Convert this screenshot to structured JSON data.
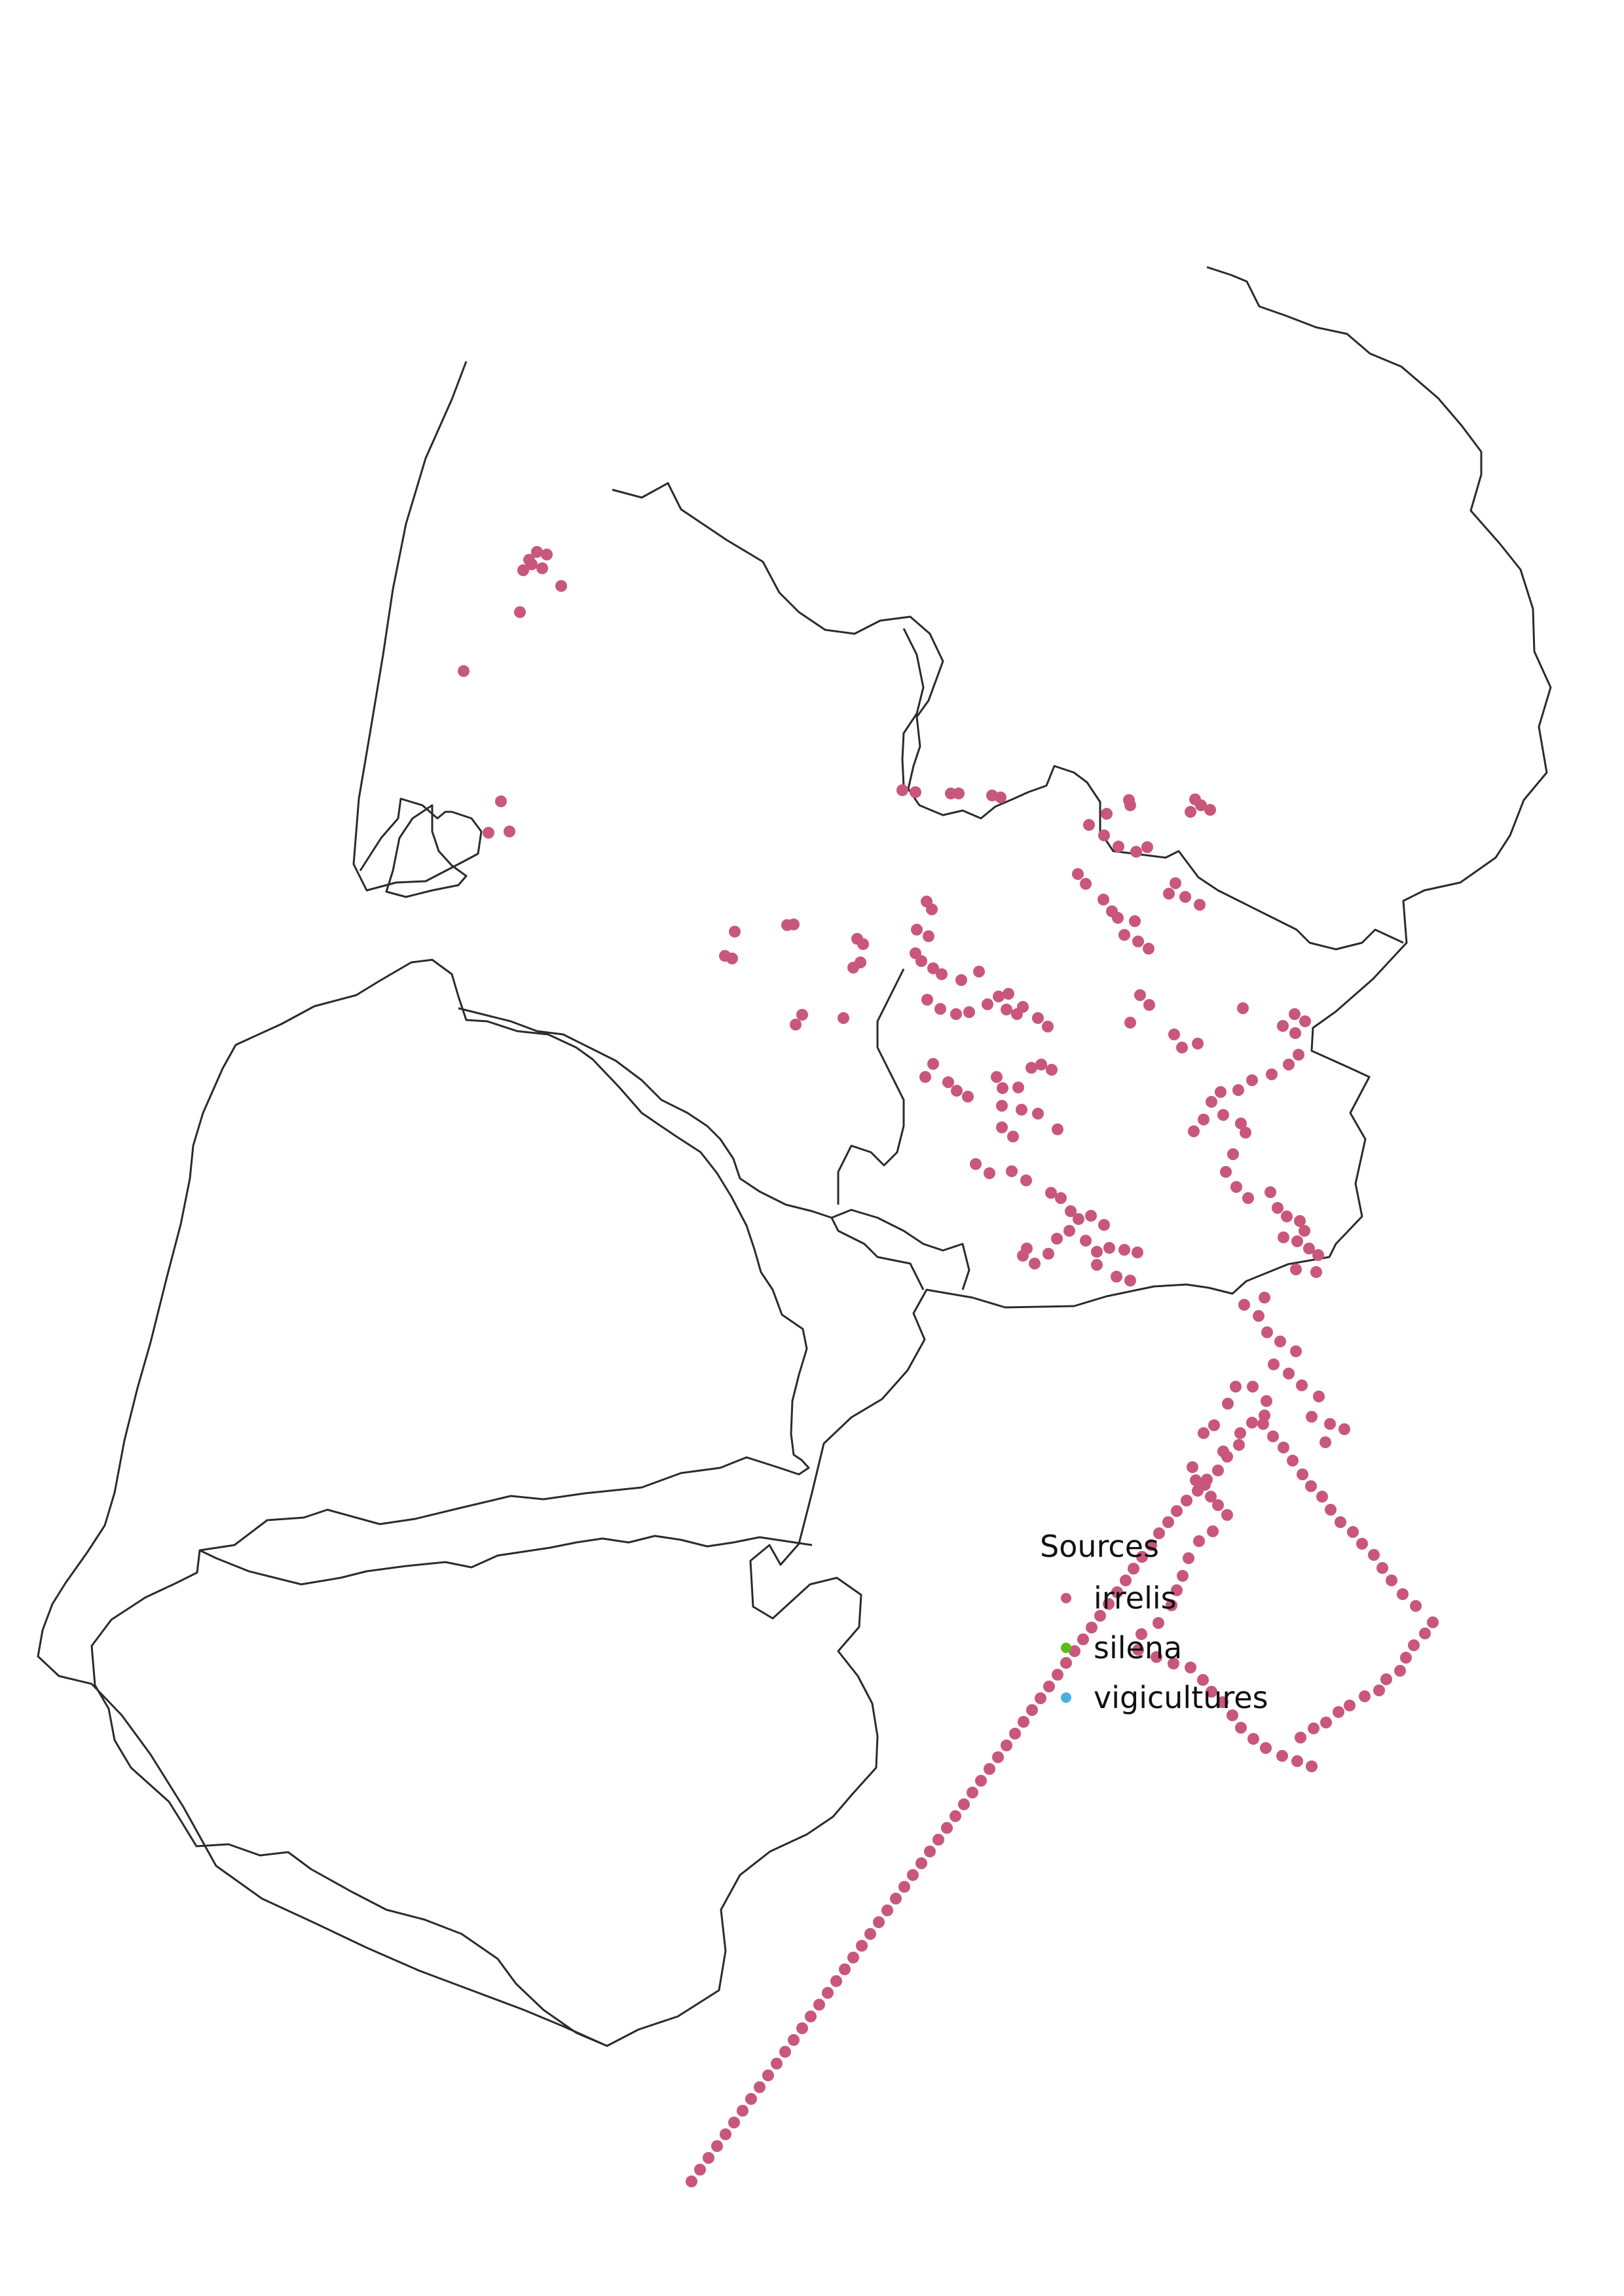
{
  "legend": {
    "title": "Sources",
    "items": [
      {
        "key": "irrelis",
        "label": "irrelis",
        "color": "#c9577a"
      },
      {
        "key": "silena",
        "label": "silena",
        "color": "#5abd1e"
      },
      {
        "key": "vigicultures",
        "label": "vigicultures",
        "color": "#49ade2"
      }
    ]
  },
  "map_data": {
    "type": "point-map",
    "base_layer": "department boundaries",
    "series": [
      {
        "name": "irrelis",
        "color": "#c9577a",
        "points": [
          [
            808,
            855
          ],
          [
            820,
            843
          ],
          [
            835,
            847
          ],
          [
            812,
            862
          ],
          [
            828,
            868
          ],
          [
            799,
            871
          ],
          [
            794,
            935
          ],
          [
            857,
            895
          ],
          [
            708,
            1025
          ],
          [
            765,
            1224
          ],
          [
            746,
            1272
          ],
          [
            778,
            1270
          ],
          [
            1107,
            1460
          ],
          [
            1118,
            1464
          ],
          [
            1122,
            1423
          ],
          [
            1202,
            1413
          ],
          [
            1212,
            1412
          ],
          [
            1225,
            1550
          ],
          [
            1215,
            1565
          ],
          [
            1288,
            1555
          ],
          [
            1378,
            1207
          ],
          [
            1398,
            1210
          ],
          [
            1452,
            1212
          ],
          [
            1464,
            1212
          ],
          [
            1515,
            1215
          ],
          [
            1528,
            1218
          ],
          [
            1423,
            1389
          ],
          [
            1415,
            1377
          ],
          [
            1418,
            1430
          ],
          [
            1400,
            1420
          ],
          [
            1309,
            1434
          ],
          [
            1318,
            1442
          ],
          [
            1314,
            1470
          ],
          [
            1303,
            1478
          ],
          [
            1398,
            1456
          ],
          [
            1407,
            1468
          ],
          [
            1425,
            1479
          ],
          [
            1438,
            1488
          ],
          [
            1468,
            1497
          ],
          [
            1495,
            1484
          ],
          [
            1416,
            1527
          ],
          [
            1436,
            1541
          ],
          [
            1460,
            1549
          ],
          [
            1480,
            1546
          ],
          [
            1508,
            1534
          ],
          [
            1525,
            1522
          ],
          [
            1540,
            1518
          ],
          [
            1537,
            1542
          ],
          [
            1553,
            1549
          ],
          [
            1562,
            1538
          ],
          [
            1585,
            1555
          ],
          [
            1600,
            1568
          ],
          [
            1425,
            1625
          ],
          [
            1413,
            1645
          ],
          [
            1448,
            1653
          ],
          [
            1461,
            1666
          ],
          [
            1478,
            1675
          ],
          [
            1522,
            1645
          ],
          [
            1531,
            1662
          ],
          [
            1555,
            1661
          ],
          [
            1575,
            1631
          ],
          [
            1590,
            1626
          ],
          [
            1606,
            1634
          ],
          [
            1530,
            1689
          ],
          [
            1560,
            1695
          ],
          [
            1585,
            1701
          ],
          [
            1615,
            1725
          ],
          [
            1530,
            1722
          ],
          [
            1547,
            1736
          ],
          [
            1490,
            1778
          ],
          [
            1511,
            1792
          ],
          [
            1545,
            1789
          ],
          [
            1567,
            1803
          ],
          [
            1605,
            1822
          ],
          [
            1620,
            1830
          ],
          [
            1635,
            1850
          ],
          [
            1666,
            1857
          ],
          [
            1686,
            1871
          ],
          [
            1647,
            1862
          ],
          [
            1658,
            1895
          ],
          [
            1675,
            1912
          ],
          [
            1694,
            1906
          ],
          [
            1717,
            1909
          ],
          [
            1737,
            1913
          ],
          [
            1705,
            1950
          ],
          [
            1726,
            1956
          ],
          [
            1614,
            1892
          ],
          [
            1633,
            1880
          ],
          [
            1675,
            1932
          ],
          [
            1568,
            1907
          ],
          [
            1562,
            1918
          ],
          [
            1580,
            1930
          ],
          [
            1601,
            1915
          ],
          [
            1724,
            1222
          ],
          [
            1726,
            1230
          ],
          [
            1690,
            1243
          ],
          [
            1663,
            1260
          ],
          [
            1686,
            1276
          ],
          [
            1708,
            1293
          ],
          [
            1735,
            1301
          ],
          [
            1752,
            1294
          ],
          [
            1646,
            1335
          ],
          [
            1658,
            1350
          ],
          [
            1685,
            1374
          ],
          [
            1698,
            1392
          ],
          [
            1707,
            1402
          ],
          [
            1733,
            1407
          ],
          [
            1717,
            1428
          ],
          [
            1738,
            1438
          ],
          [
            1754,
            1449
          ],
          [
            1825,
            1221
          ],
          [
            1834,
            1230
          ],
          [
            1818,
            1240
          ],
          [
            1848,
            1237
          ],
          [
            1795,
            1349
          ],
          [
            1785,
            1365
          ],
          [
            1810,
            1370
          ],
          [
            1832,
            1382
          ],
          [
            1741,
            1520
          ],
          [
            1755,
            1535
          ],
          [
            1726,
            1562
          ],
          [
            1793,
            1580
          ],
          [
            1805,
            1600
          ],
          [
            1829,
            1594
          ],
          [
            1898,
            1540
          ],
          [
            1959,
            1567
          ],
          [
            1977,
            1549
          ],
          [
            1993,
            1560
          ],
          [
            1978,
            1578
          ],
          [
            1983,
            1611
          ],
          [
            1968,
            1626
          ],
          [
            1942,
            1641
          ],
          [
            1912,
            1650
          ],
          [
            1891,
            1665
          ],
          [
            1864,
            1668
          ],
          [
            1850,
            1683
          ],
          [
            1838,
            1710
          ],
          [
            1823,
            1728
          ],
          [
            1868,
            1703
          ],
          [
            1895,
            1716
          ],
          [
            1902,
            1730
          ],
          [
            1883,
            1763
          ],
          [
            1872,
            1790
          ],
          [
            1888,
            1813
          ],
          [
            1906,
            1830
          ],
          [
            1940,
            1821
          ],
          [
            1951,
            1845
          ],
          [
            1965,
            1858
          ],
          [
            1985,
            1865
          ],
          [
            1992,
            1880
          ],
          [
            1960,
            1890
          ],
          [
            1981,
            1896
          ],
          [
            1999,
            1907
          ],
          [
            2013,
            1917
          ],
          [
            1979,
            1939
          ],
          [
            2010,
            1943
          ],
          [
            1931,
            1982
          ],
          [
            1900,
            1993
          ],
          [
            1922,
            2010
          ],
          [
            1935,
            2035
          ],
          [
            1955,
            2049
          ],
          [
            1979,
            2064
          ],
          [
            1945,
            2084
          ],
          [
            1968,
            2098
          ],
          [
            1988,
            2116
          ],
          [
            2014,
            2133
          ],
          [
            2003,
            2164
          ],
          [
            2031,
            2175
          ],
          [
            2053,
            2183
          ],
          [
            2024,
            2203
          ],
          [
            1913,
            2118
          ],
          [
            1934,
            2140
          ],
          [
            1931,
            2162
          ],
          [
            1838,
            2189
          ],
          [
            1854,
            2177
          ],
          [
            1875,
            2144
          ],
          [
            1887,
            2118
          ],
          [
            1912,
            2173
          ],
          [
            1894,
            2189
          ],
          [
            1868,
            2217
          ],
          [
            1821,
            2241
          ],
          [
            1826,
            2261
          ],
          [
            1840,
            2268
          ],
          [
            1849,
            2286
          ],
          [
            1860,
            2299
          ],
          [
            1874,
            2314
          ],
          [
            1852,
            2339
          ],
          [
            1831,
            2354
          ],
          [
            1815,
            2380
          ],
          [
            1806,
            2407
          ],
          [
            1797,
            2429
          ],
          [
            1789,
            2452
          ],
          [
            1769,
            2479
          ],
          [
            1743,
            2496
          ],
          [
            1738,
            2520
          ],
          [
            1766,
            2531
          ],
          [
            1792,
            2541
          ],
          [
            1818,
            2547
          ],
          [
            1837,
            2566
          ],
          [
            1850,
            2584
          ],
          [
            1867,
            2600
          ],
          [
            1882,
            2620
          ],
          [
            1895,
            2639
          ],
          [
            1914,
            2656
          ],
          [
            1933,
            2670
          ],
          [
            1958,
            2682
          ],
          [
            1981,
            2690
          ],
          [
            2003,
            2698
          ],
          [
            1986,
            2654
          ],
          [
            2006,
            2640
          ],
          [
            2025,
            2631
          ],
          [
            2044,
            2615
          ],
          [
            2061,
            2605
          ],
          [
            2084,
            2591
          ],
          [
            2106,
            2582
          ],
          [
            2117,
            2565
          ],
          [
            2138,
            2552
          ],
          [
            2147,
            2532
          ],
          [
            2159,
            2513
          ],
          [
            2176,
            2495
          ],
          [
            2188,
            2478
          ],
          [
            2162,
            2453
          ],
          [
            2142,
            2435
          ],
          [
            2125,
            2414
          ],
          [
            2111,
            2395
          ],
          [
            2098,
            2375
          ],
          [
            2080,
            2358
          ],
          [
            2066,
            2340
          ],
          [
            2047,
            2325
          ],
          [
            2032,
            2306
          ],
          [
            2019,
            2286
          ],
          [
            2002,
            2270
          ],
          [
            1989,
            2252
          ],
          [
            1974,
            2231
          ],
          [
            1960,
            2211
          ],
          [
            1944,
            2194
          ],
          [
            1929,
            2175
          ],
          [
            1892,
            2207
          ],
          [
            1874,
            2225
          ],
          [
            1860,
            2246
          ],
          [
            1843,
            2260
          ],
          [
            1829,
            2277
          ],
          [
            1812,
            2292
          ],
          [
            1797,
            2308
          ],
          [
            1784,
            2325
          ],
          [
            1770,
            2342
          ],
          [
            1758,
            2360
          ],
          [
            1744,
            2378
          ],
          [
            1731,
            2396
          ],
          [
            1719,
            2414
          ],
          [
            1706,
            2432
          ],
          [
            1693,
            2450
          ],
          [
            1680,
            2468
          ],
          [
            1667,
            2486
          ],
          [
            1654,
            2504
          ],
          [
            1641,
            2522
          ],
          [
            1628,
            2540
          ],
          [
            1615,
            2558
          ],
          [
            1602,
            2576
          ],
          [
            1589,
            2594
          ],
          [
            1576,
            2612
          ],
          [
            1563,
            2630
          ],
          [
            1550,
            2648
          ],
          [
            1537,
            2666
          ],
          [
            1524,
            2684
          ],
          [
            1511,
            2702
          ],
          [
            1498,
            2720
          ],
          [
            1485,
            2738
          ],
          [
            1472,
            2756
          ],
          [
            1459,
            2774
          ],
          [
            1446,
            2792
          ],
          [
            1433,
            2810
          ],
          [
            1420,
            2828
          ],
          [
            1407,
            2846
          ],
          [
            1394,
            2864
          ],
          [
            1381,
            2882
          ],
          [
            1368,
            2900
          ],
          [
            1355,
            2918
          ],
          [
            1342,
            2936
          ],
          [
            1329,
            2954
          ],
          [
            1316,
            2972
          ],
          [
            1303,
            2990
          ],
          [
            1290,
            3008
          ],
          [
            1277,
            3026
          ],
          [
            1264,
            3044
          ],
          [
            1251,
            3062
          ],
          [
            1238,
            3080
          ],
          [
            1225,
            3098
          ],
          [
            1212,
            3116
          ],
          [
            1199,
            3134
          ],
          [
            1186,
            3152
          ],
          [
            1173,
            3170
          ],
          [
            1160,
            3188
          ],
          [
            1147,
            3206
          ],
          [
            1134,
            3224
          ],
          [
            1121,
            3242
          ],
          [
            1108,
            3260
          ],
          [
            1095,
            3278
          ],
          [
            1082,
            3296
          ],
          [
            1069,
            3314
          ],
          [
            1056,
            3332
          ]
        ]
      }
    ]
  }
}
